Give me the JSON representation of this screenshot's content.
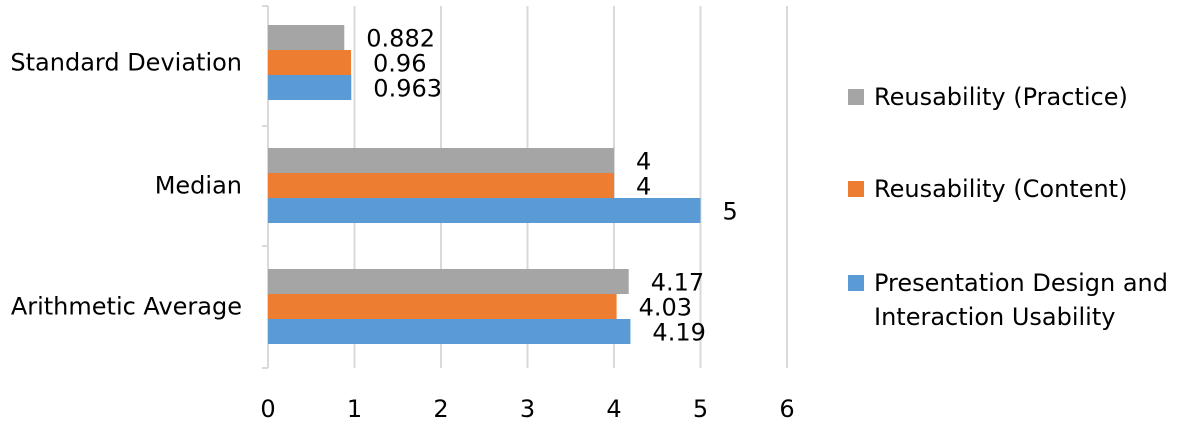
{
  "chart_data": {
    "type": "bar",
    "orientation": "horizontal",
    "categories": [
      "Standard Deviation",
      "Median",
      "Arithmetic Average"
    ],
    "series": [
      {
        "name": "Reusability (Practice)",
        "color": "#a5a5a5",
        "values": [
          0.882,
          4,
          4.17
        ],
        "labels": [
          "0.882",
          "4",
          "4.17"
        ]
      },
      {
        "name": "Reusability (Content)",
        "color": "#ed7d31",
        "values": [
          0.96,
          4,
          4.03
        ],
        "labels": [
          "0.96",
          "4",
          "4.03"
        ]
      },
      {
        "name": "Presentation Design and Interaction Usability",
        "color": "#5b9bd5",
        "values": [
          0.963,
          5,
          4.19
        ],
        "labels": [
          "0.963",
          "5",
          "4.19"
        ]
      }
    ],
    "xlim": [
      0,
      6
    ],
    "xticks": [
      "0",
      "1",
      "2",
      "3",
      "4",
      "5",
      "6"
    ],
    "grid": true,
    "legend_position": "right"
  },
  "legend": [
    {
      "label": "Reusability (Practice)",
      "color": "#a5a5a5"
    },
    {
      "label": "Reusability (Content)",
      "color": "#ed7d31"
    },
    {
      "label": "Presentation Design and\nInteraction Usability",
      "color": "#5b9bd5"
    }
  ]
}
